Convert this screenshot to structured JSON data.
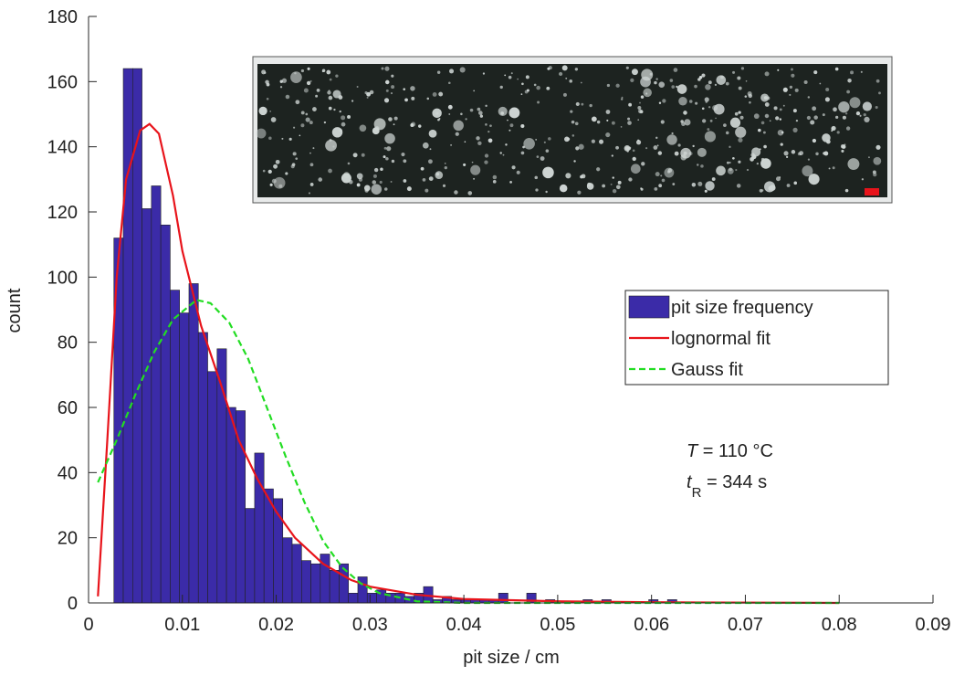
{
  "chart_data": {
    "type": "histogram",
    "xlabel": "pit size / cm",
    "ylabel": "count",
    "xlim": [
      0,
      0.09
    ],
    "ylim": [
      0,
      180
    ],
    "xticks": [
      0,
      0.01,
      0.02,
      0.03,
      0.04,
      0.05,
      0.06,
      0.07,
      0.08,
      0.09
    ],
    "yticks": [
      0,
      20,
      40,
      60,
      80,
      100,
      120,
      140,
      160,
      180
    ],
    "grid": false,
    "legend": "right",
    "series": [
      {
        "name": "pit size frequency",
        "type": "histogram",
        "color": "#3b2ba8",
        "bins": [
          0.0027,
          0.0037,
          0.0047,
          0.0057,
          0.0067,
          0.0077,
          0.0087,
          0.0097,
          0.0107,
          0.0117,
          0.0127,
          0.0137,
          0.0147,
          0.0157,
          0.0167,
          0.0177,
          0.0187,
          0.0197,
          0.0207,
          0.0217,
          0.0227,
          0.0237,
          0.0247,
          0.0257,
          0.0267,
          0.0277,
          0.0287,
          0.0297,
          0.0307,
          0.0317,
          0.0327,
          0.0337,
          0.0347,
          0.0357,
          0.0367,
          0.0377,
          0.0387,
          0.0397,
          0.0407,
          0.0417,
          0.0427,
          0.0437,
          0.0447,
          0.0457,
          0.0467,
          0.0477,
          0.0487,
          0.0497,
          0.0507,
          0.0517,
          0.0527,
          0.0537,
          0.0547,
          0.0557,
          0.0567,
          0.0577,
          0.0587,
          0.0597,
          0.0607,
          0.0617,
          0.0627,
          0.0637,
          0.0647,
          0.0657,
          0.0667,
          0.0677,
          0.0687,
          0.0697,
          0.0707,
          0.0717,
          0.0727,
          0.0737,
          0.0747,
          0.0757,
          0.0767,
          0.0777,
          0.0787,
          0.0797
        ],
        "values": [
          112,
          164,
          164,
          121,
          128,
          116,
          96,
          89,
          98,
          83,
          71,
          78,
          60,
          59,
          29,
          46,
          35,
          32,
          20,
          18,
          13,
          12,
          15,
          10,
          12,
          3,
          8,
          3,
          4,
          3,
          3,
          2,
          3,
          5,
          1,
          2,
          1,
          1,
          1,
          1,
          1,
          3,
          0,
          0,
          3,
          0,
          1,
          0,
          0,
          0,
          1,
          0,
          1,
          0,
          0,
          0,
          0,
          1,
          0,
          1,
          0,
          0,
          0,
          0,
          0,
          0,
          0,
          0,
          0,
          0,
          0,
          0,
          0,
          0,
          0,
          0,
          0
        ]
      },
      {
        "name": "lognormal fit",
        "type": "line",
        "color": "#e8141b",
        "dashed": false,
        "x": [
          0.001,
          0.002,
          0.003,
          0.004,
          0.005,
          0.0055,
          0.0065,
          0.0075,
          0.009,
          0.01,
          0.012,
          0.014,
          0.016,
          0.018,
          0.02,
          0.022,
          0.025,
          0.028,
          0.03,
          0.035,
          0.04,
          0.05,
          0.06,
          0.08
        ],
        "values": [
          2,
          50,
          100,
          130,
          140,
          145,
          147,
          144,
          125,
          108,
          85,
          68,
          50,
          38,
          28,
          20,
          12,
          7,
          5,
          2.5,
          1.2,
          0.5,
          0.2,
          0
        ]
      },
      {
        "name": "Gauss fit",
        "type": "line",
        "color": "#22dd22",
        "dashed": true,
        "x": [
          0.001,
          0.003,
          0.005,
          0.007,
          0.009,
          0.0115,
          0.013,
          0.015,
          0.017,
          0.019,
          0.021,
          0.023,
          0.025,
          0.027,
          0.029,
          0.031,
          0.035,
          0.04,
          0.06,
          0.08
        ],
        "values": [
          37,
          50,
          64,
          77,
          87,
          93,
          92,
          86,
          75,
          60,
          45,
          31,
          19,
          11,
          6,
          3,
          0.5,
          0,
          0,
          0
        ]
      }
    ],
    "annotations": [
      {
        "symbol": "T",
        "text": "= 110 °C"
      },
      {
        "symbol": "t",
        "subscript": "R",
        "text": "= 344 s"
      }
    ]
  }
}
